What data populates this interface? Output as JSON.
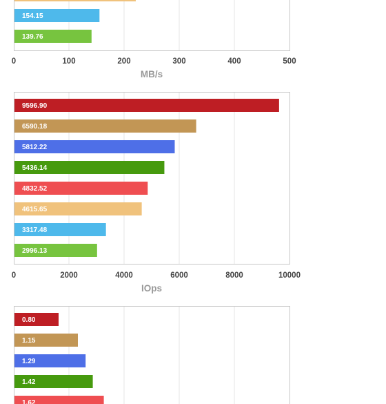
{
  "colors": {
    "series": [
      "#be1e24",
      "#c29655",
      "#4e6fe7",
      "#469a0e",
      "#ef4e51",
      "#f0c27c",
      "#4eb9eb",
      "#77c43f"
    ],
    "frame": "#c6c6c6",
    "grid": "#e6e6e6",
    "tick_text": "#444444",
    "axis_title": "#999999"
  },
  "chart_data": [
    {
      "type": "bar",
      "orientation": "horizontal",
      "xlabel": "MB/s",
      "xlim": [
        0,
        500
      ],
      "xticks": [
        0,
        100,
        200,
        300,
        400,
        500
      ],
      "grid": true,
      "bars": [
        {
          "value": 220,
          "label": ""
        },
        {
          "value": 154.15,
          "label": "154.15"
        },
        {
          "value": 139.76,
          "label": "139.76"
        }
      ],
      "color_offset": 5,
      "cropped_top": true
    },
    {
      "type": "bar",
      "orientation": "horizontal",
      "xlabel": "IOps",
      "xlim": [
        0,
        10000
      ],
      "xticks": [
        0,
        2000,
        4000,
        6000,
        8000,
        10000
      ],
      "grid": true,
      "bars": [
        {
          "value": 9596.9,
          "label": "9596.90"
        },
        {
          "value": 6590.18,
          "label": "6590.18"
        },
        {
          "value": 5812.22,
          "label": "5812.22"
        },
        {
          "value": 5436.14,
          "label": "5436.14"
        },
        {
          "value": 4832.52,
          "label": "4832.52"
        },
        {
          "value": 4615.65,
          "label": "4615.65"
        },
        {
          "value": 3317.48,
          "label": "3317.48"
        },
        {
          "value": 2996.13,
          "label": "2996.13"
        }
      ],
      "color_offset": 0
    },
    {
      "type": "bar",
      "orientation": "horizontal",
      "xlabel": "",
      "xlim": [
        0,
        5
      ],
      "grid": true,
      "bars": [
        {
          "value": 0.8,
          "label": "0.80"
        },
        {
          "value": 1.15,
          "label": "1.15"
        },
        {
          "value": 1.29,
          "label": "1.29"
        },
        {
          "value": 1.42,
          "label": "1.42"
        },
        {
          "value": 1.62,
          "label": "1.62"
        }
      ],
      "color_offset": 0,
      "cropped_bottom": true
    }
  ]
}
